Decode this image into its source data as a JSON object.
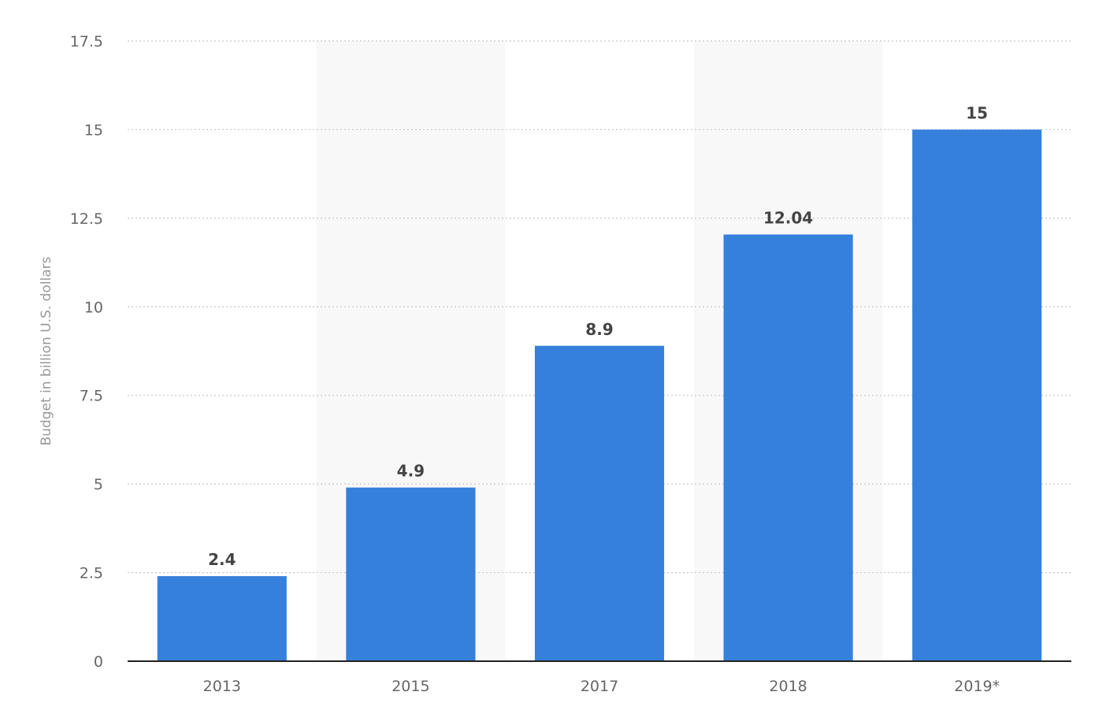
{
  "chart_data": {
    "type": "bar",
    "categories": [
      "2013",
      "2015",
      "2017",
      "2018",
      "2019*"
    ],
    "values": [
      2.4,
      4.9,
      8.9,
      12.04,
      15
    ],
    "value_labels": [
      "2.4",
      "4.9",
      "8.9",
      "12.04",
      "15"
    ],
    "title": "",
    "xlabel": "",
    "ylabel": "Budget in billion U.S. dollars",
    "ylim": [
      0,
      17.5
    ],
    "yticks": [
      0,
      2.5,
      5,
      7.5,
      10,
      12.5,
      15,
      17.5
    ],
    "ytick_labels": [
      "0",
      "2.5",
      "5",
      "7.5",
      "10",
      "12.5",
      "15",
      "17.5"
    ],
    "grid": true,
    "legend": "none",
    "colors": {
      "bar": "#3480db",
      "band": "#f8f8f8",
      "grid": "#c8c8c8",
      "axis": "#222222"
    }
  }
}
